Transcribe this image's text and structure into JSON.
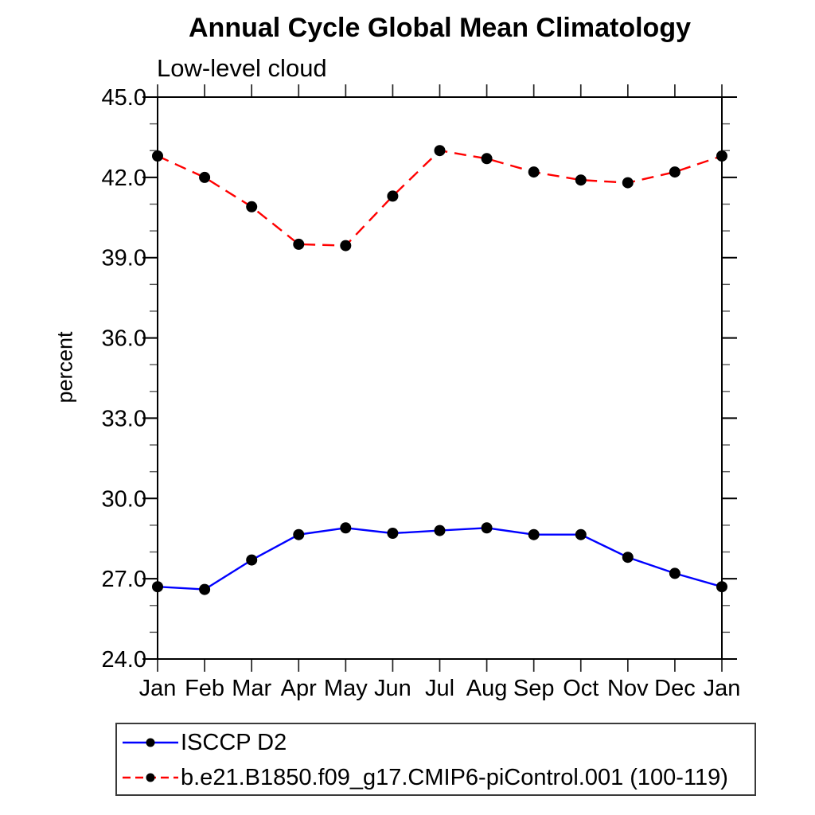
{
  "title": "Annual Cycle Global Mean Climatology",
  "subtitle": "Low-level cloud",
  "chart_data": {
    "type": "line",
    "title": "Annual Cycle Global Mean Climatology",
    "subtitle": "Low-level cloud",
    "xlabel": "",
    "ylabel": "percent",
    "x_categories": [
      "Jan",
      "Feb",
      "Mar",
      "Apr",
      "May",
      "Jun",
      "Jul",
      "Aug",
      "Sep",
      "Oct",
      "Nov",
      "Dec",
      "Jan"
    ],
    "ylim": [
      24.0,
      45.0
    ],
    "y_major_step": 3.0,
    "y_minor_step": 1.0,
    "y_major_ticks": [
      24,
      27,
      30,
      33,
      36,
      39,
      42,
      45
    ],
    "y_tick_labels": [
      "24.0",
      "27.0",
      "30.0",
      "33.0",
      "36.0",
      "39.0",
      "42.0",
      "45.0"
    ],
    "grid": false,
    "legend_position": "bottom-left",
    "marker_color": "#000000",
    "series": [
      {
        "name": "ISCCP D2",
        "color": "#0000ff",
        "style": "solid",
        "marker": "filled-circle",
        "marker_color": "#000000",
        "values": [
          26.7,
          26.6,
          27.7,
          28.65,
          28.9,
          28.7,
          28.8,
          28.9,
          28.65,
          28.65,
          27.8,
          27.2,
          26.7
        ]
      },
      {
        "name": "b.e21.B1850.f09_g17.CMIP6-piControl.001 (100-119)",
        "color": "#ff0000",
        "style": "dashed",
        "marker": "filled-circle",
        "marker_color": "#000000",
        "values": [
          42.8,
          42.0,
          40.9,
          39.5,
          39.45,
          41.3,
          43.0,
          42.7,
          42.2,
          41.9,
          41.8,
          42.2,
          42.8
        ]
      }
    ]
  }
}
